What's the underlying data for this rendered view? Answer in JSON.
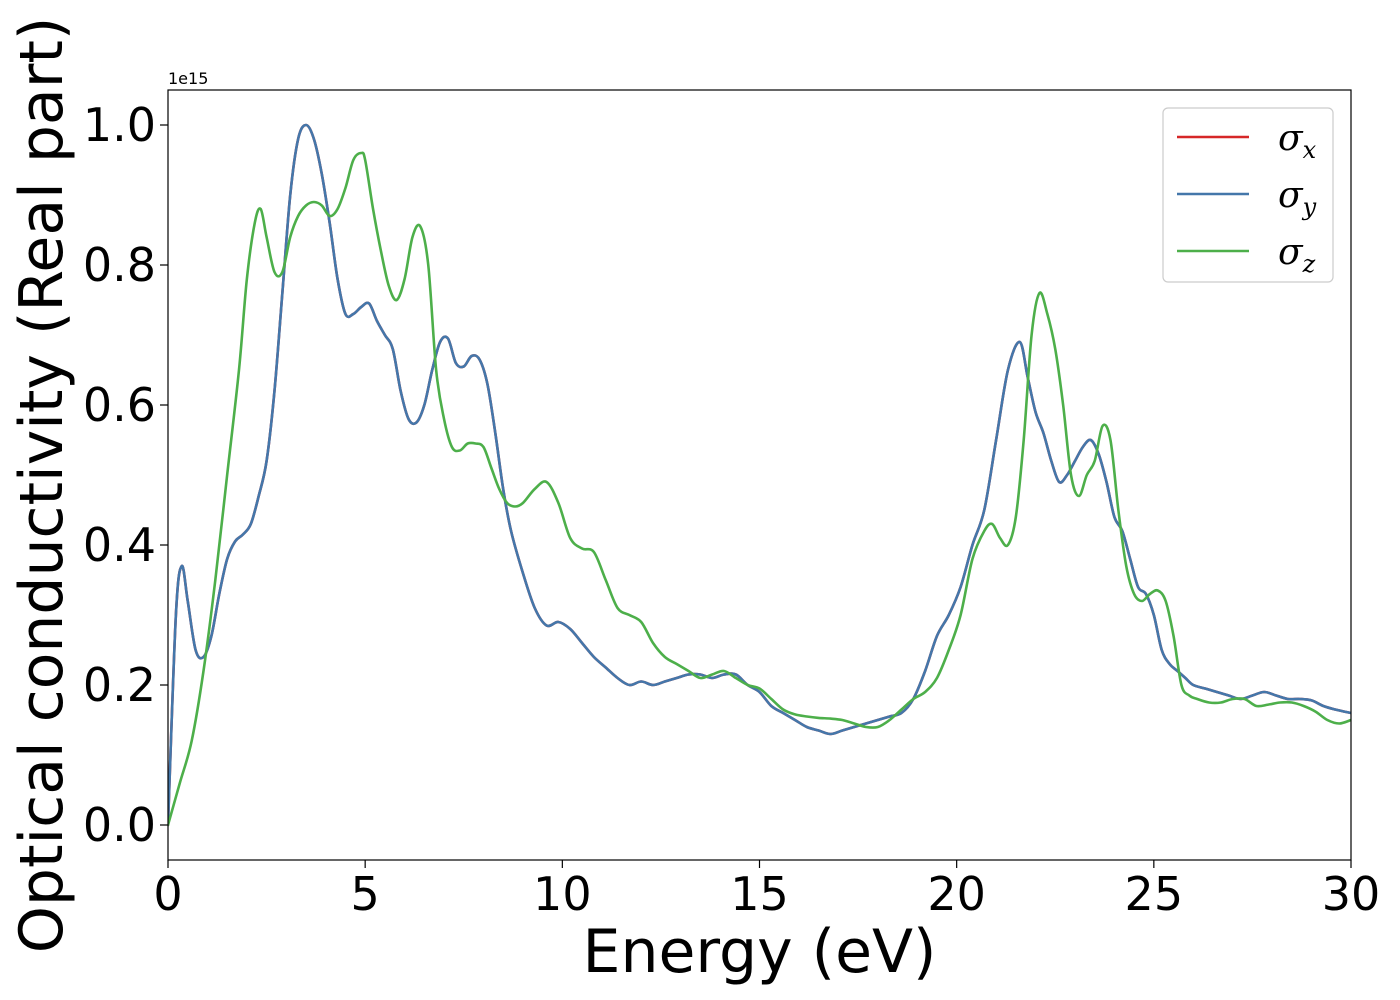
{
  "chart_data": {
    "type": "line",
    "xlabel": "Energy (eV)",
    "ylabel": "Optical conductivity (Real part)",
    "y_offset_label": "1e15",
    "xlim": [
      0,
      30
    ],
    "ylim": [
      -0.05,
      1.05
    ],
    "xticks": [
      0,
      5,
      10,
      15,
      20,
      25,
      30
    ],
    "xtick_labels": [
      "0",
      "5",
      "10",
      "15",
      "20",
      "25",
      "30"
    ],
    "yticks": [
      0.0,
      0.2,
      0.4,
      0.6,
      0.8,
      1.0
    ],
    "ytick_labels": [
      "0.0",
      "0.2",
      "0.4",
      "0.6",
      "0.8",
      "1.0"
    ],
    "grid": false,
    "legend_position": "top-right",
    "series": [
      {
        "name": "σx",
        "symbol": "σ",
        "subscript": "x",
        "color": "#d62728",
        "x": [
          0,
          0.2,
          0.35,
          0.5,
          0.7,
          0.9,
          1.1,
          1.3,
          1.5,
          1.7,
          1.9,
          2.1,
          2.3,
          2.5,
          2.7,
          2.9,
          3.1,
          3.3,
          3.5,
          3.7,
          3.9,
          4.1,
          4.3,
          4.5,
          4.7,
          4.9,
          5.1,
          5.3,
          5.5,
          5.7,
          5.9,
          6.1,
          6.3,
          6.5,
          6.7,
          6.9,
          7.1,
          7.3,
          7.5,
          7.7,
          7.9,
          8.1,
          8.3,
          8.5,
          8.7,
          9.0,
          9.3,
          9.6,
          9.9,
          10.2,
          10.5,
          10.8,
          11.1,
          11.4,
          11.7,
          12.0,
          12.3,
          12.6,
          12.9,
          13.2,
          13.5,
          13.8,
          14.1,
          14.4,
          14.7,
          15.0,
          15.3,
          15.6,
          15.9,
          16.2,
          16.5,
          16.8,
          17.1,
          17.4,
          17.7,
          18.0,
          18.3,
          18.6,
          18.9,
          19.2,
          19.5,
          19.8,
          20.1,
          20.4,
          20.7,
          21.0,
          21.3,
          21.6,
          21.8,
          22.0,
          22.2,
          22.4,
          22.6,
          22.8,
          23.0,
          23.2,
          23.4,
          23.6,
          23.8,
          24.0,
          24.2,
          24.4,
          24.6,
          24.8,
          25.0,
          25.2,
          25.4,
          25.6,
          25.8,
          26.0,
          26.3,
          26.6,
          26.9,
          27.2,
          27.5,
          27.8,
          28.1,
          28.4,
          28.7,
          29.0,
          29.3,
          29.6,
          30.0
        ],
        "y": [
          0.0,
          0.3,
          0.37,
          0.32,
          0.25,
          0.24,
          0.27,
          0.33,
          0.38,
          0.405,
          0.415,
          0.43,
          0.47,
          0.52,
          0.62,
          0.76,
          0.9,
          0.98,
          1.0,
          0.98,
          0.93,
          0.86,
          0.78,
          0.73,
          0.73,
          0.74,
          0.745,
          0.72,
          0.7,
          0.68,
          0.62,
          0.58,
          0.575,
          0.6,
          0.65,
          0.69,
          0.695,
          0.66,
          0.655,
          0.67,
          0.665,
          0.63,
          0.56,
          0.48,
          0.42,
          0.36,
          0.31,
          0.285,
          0.29,
          0.28,
          0.26,
          0.24,
          0.225,
          0.21,
          0.2,
          0.205,
          0.2,
          0.205,
          0.21,
          0.215,
          0.215,
          0.21,
          0.215,
          0.215,
          0.2,
          0.19,
          0.17,
          0.16,
          0.15,
          0.14,
          0.135,
          0.13,
          0.135,
          0.14,
          0.145,
          0.15,
          0.155,
          0.16,
          0.18,
          0.22,
          0.27,
          0.3,
          0.34,
          0.4,
          0.45,
          0.55,
          0.65,
          0.69,
          0.64,
          0.59,
          0.56,
          0.52,
          0.49,
          0.5,
          0.52,
          0.54,
          0.55,
          0.53,
          0.49,
          0.44,
          0.42,
          0.38,
          0.34,
          0.33,
          0.3,
          0.25,
          0.23,
          0.22,
          0.21,
          0.2,
          0.195,
          0.19,
          0.185,
          0.18,
          0.185,
          0.19,
          0.185,
          0.18,
          0.18,
          0.178,
          0.17,
          0.165,
          0.16
        ]
      },
      {
        "name": "σy",
        "symbol": "σ",
        "subscript": "y",
        "color": "#4477aa",
        "x": [
          0,
          0.2,
          0.35,
          0.5,
          0.7,
          0.9,
          1.1,
          1.3,
          1.5,
          1.7,
          1.9,
          2.1,
          2.3,
          2.5,
          2.7,
          2.9,
          3.1,
          3.3,
          3.5,
          3.7,
          3.9,
          4.1,
          4.3,
          4.5,
          4.7,
          4.9,
          5.1,
          5.3,
          5.5,
          5.7,
          5.9,
          6.1,
          6.3,
          6.5,
          6.7,
          6.9,
          7.1,
          7.3,
          7.5,
          7.7,
          7.9,
          8.1,
          8.3,
          8.5,
          8.7,
          9.0,
          9.3,
          9.6,
          9.9,
          10.2,
          10.5,
          10.8,
          11.1,
          11.4,
          11.7,
          12.0,
          12.3,
          12.6,
          12.9,
          13.2,
          13.5,
          13.8,
          14.1,
          14.4,
          14.7,
          15.0,
          15.3,
          15.6,
          15.9,
          16.2,
          16.5,
          16.8,
          17.1,
          17.4,
          17.7,
          18.0,
          18.3,
          18.6,
          18.9,
          19.2,
          19.5,
          19.8,
          20.1,
          20.4,
          20.7,
          21.0,
          21.3,
          21.6,
          21.8,
          22.0,
          22.2,
          22.4,
          22.6,
          22.8,
          23.0,
          23.2,
          23.4,
          23.6,
          23.8,
          24.0,
          24.2,
          24.4,
          24.6,
          24.8,
          25.0,
          25.2,
          25.4,
          25.6,
          25.8,
          26.0,
          26.3,
          26.6,
          26.9,
          27.2,
          27.5,
          27.8,
          28.1,
          28.4,
          28.7,
          29.0,
          29.3,
          29.6,
          30.0
        ],
        "y": [
          0.0,
          0.3,
          0.37,
          0.32,
          0.25,
          0.24,
          0.27,
          0.33,
          0.38,
          0.405,
          0.415,
          0.43,
          0.47,
          0.52,
          0.62,
          0.76,
          0.9,
          0.98,
          1.0,
          0.98,
          0.93,
          0.86,
          0.78,
          0.73,
          0.73,
          0.74,
          0.745,
          0.72,
          0.7,
          0.68,
          0.62,
          0.58,
          0.575,
          0.6,
          0.65,
          0.69,
          0.695,
          0.66,
          0.655,
          0.67,
          0.665,
          0.63,
          0.56,
          0.48,
          0.42,
          0.36,
          0.31,
          0.285,
          0.29,
          0.28,
          0.26,
          0.24,
          0.225,
          0.21,
          0.2,
          0.205,
          0.2,
          0.205,
          0.21,
          0.215,
          0.215,
          0.21,
          0.215,
          0.215,
          0.2,
          0.19,
          0.17,
          0.16,
          0.15,
          0.14,
          0.135,
          0.13,
          0.135,
          0.14,
          0.145,
          0.15,
          0.155,
          0.16,
          0.18,
          0.22,
          0.27,
          0.3,
          0.34,
          0.4,
          0.45,
          0.55,
          0.65,
          0.69,
          0.64,
          0.59,
          0.56,
          0.52,
          0.49,
          0.5,
          0.52,
          0.54,
          0.55,
          0.53,
          0.49,
          0.44,
          0.42,
          0.38,
          0.34,
          0.33,
          0.3,
          0.25,
          0.23,
          0.22,
          0.21,
          0.2,
          0.195,
          0.19,
          0.185,
          0.18,
          0.185,
          0.19,
          0.185,
          0.18,
          0.18,
          0.178,
          0.17,
          0.165,
          0.16
        ]
      },
      {
        "name": "σz",
        "symbol": "σ",
        "subscript": "z",
        "color": "#4daf4a",
        "x": [
          0,
          0.3,
          0.6,
          0.9,
          1.2,
          1.5,
          1.8,
          2.0,
          2.2,
          2.35,
          2.5,
          2.7,
          2.9,
          3.1,
          3.3,
          3.5,
          3.7,
          3.9,
          4.1,
          4.3,
          4.5,
          4.7,
          4.9,
          5.0,
          5.2,
          5.4,
          5.6,
          5.8,
          6.0,
          6.2,
          6.4,
          6.6,
          6.8,
          7.0,
          7.2,
          7.4,
          7.6,
          7.8,
          8.0,
          8.2,
          8.4,
          8.6,
          8.8,
          9.0,
          9.3,
          9.6,
          9.9,
          10.2,
          10.5,
          10.8,
          11.1,
          11.4,
          11.7,
          12.0,
          12.3,
          12.6,
          12.9,
          13.2,
          13.5,
          13.8,
          14.1,
          14.4,
          14.7,
          15.0,
          15.3,
          15.6,
          15.9,
          16.2,
          16.5,
          16.8,
          17.1,
          17.4,
          17.7,
          18.0,
          18.3,
          18.6,
          18.9,
          19.2,
          19.5,
          19.8,
          20.1,
          20.4,
          20.7,
          20.9,
          21.1,
          21.3,
          21.5,
          21.7,
          21.9,
          22.1,
          22.3,
          22.5,
          22.7,
          22.9,
          23.1,
          23.3,
          23.5,
          23.7,
          23.9,
          24.1,
          24.3,
          24.5,
          24.7,
          24.9,
          25.1,
          25.3,
          25.5,
          25.7,
          25.9,
          26.1,
          26.4,
          26.7,
          27.0,
          27.3,
          27.6,
          27.9,
          28.2,
          28.5,
          28.8,
          29.1,
          29.4,
          29.7,
          30.0
        ],
        "y": [
          0.0,
          0.06,
          0.12,
          0.22,
          0.35,
          0.5,
          0.65,
          0.78,
          0.86,
          0.88,
          0.84,
          0.79,
          0.79,
          0.84,
          0.87,
          0.885,
          0.89,
          0.885,
          0.87,
          0.88,
          0.91,
          0.95,
          0.96,
          0.95,
          0.88,
          0.82,
          0.77,
          0.75,
          0.78,
          0.84,
          0.855,
          0.8,
          0.65,
          0.58,
          0.54,
          0.535,
          0.545,
          0.545,
          0.54,
          0.51,
          0.48,
          0.46,
          0.455,
          0.46,
          0.48,
          0.49,
          0.46,
          0.41,
          0.395,
          0.39,
          0.35,
          0.31,
          0.3,
          0.29,
          0.26,
          0.24,
          0.23,
          0.22,
          0.21,
          0.215,
          0.22,
          0.21,
          0.2,
          0.195,
          0.18,
          0.165,
          0.158,
          0.155,
          0.153,
          0.152,
          0.15,
          0.145,
          0.14,
          0.14,
          0.15,
          0.165,
          0.18,
          0.19,
          0.21,
          0.25,
          0.3,
          0.38,
          0.42,
          0.43,
          0.41,
          0.4,
          0.44,
          0.55,
          0.7,
          0.76,
          0.73,
          0.68,
          0.6,
          0.5,
          0.47,
          0.5,
          0.52,
          0.57,
          0.55,
          0.45,
          0.37,
          0.33,
          0.32,
          0.33,
          0.335,
          0.32,
          0.27,
          0.2,
          0.185,
          0.18,
          0.175,
          0.175,
          0.18,
          0.18,
          0.17,
          0.172,
          0.175,
          0.175,
          0.17,
          0.162,
          0.15,
          0.145,
          0.15
        ]
      }
    ]
  }
}
